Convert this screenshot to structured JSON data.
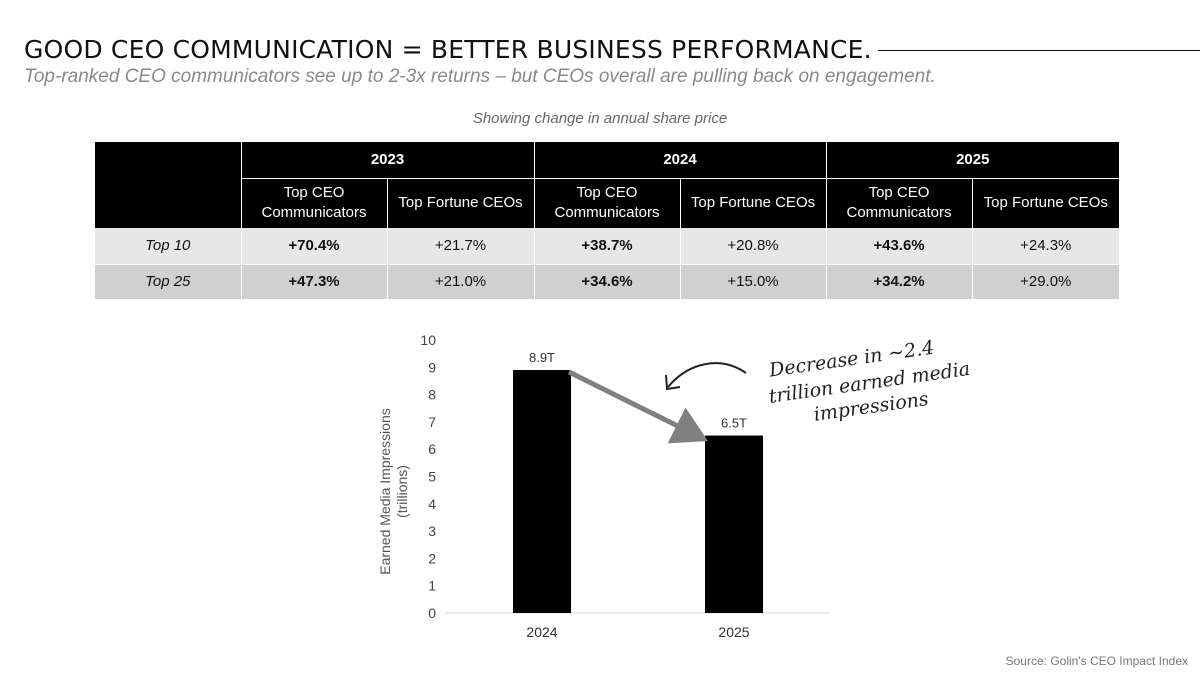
{
  "header": {
    "title": "GOOD CEO COMMUNICATION = BETTER BUSINESS PERFORMANCE.",
    "subtitle": "Top-ranked CEO communicators see up to 2-3x returns – but CEOs overall are pulling back on engagement.",
    "caption": "Showing change in annual share price"
  },
  "table": {
    "years": [
      "2023",
      "2024",
      "2025"
    ],
    "columns": [
      "Top CEO Communicators",
      "Top Fortune CEOs",
      "Top CEO Communicators",
      "Top Fortune CEOs",
      "Top CEO Communicators",
      "Top Fortune CEOs"
    ],
    "rows": [
      {
        "label": "Top 10",
        "values": [
          "+70.4%",
          "+21.7%",
          "+38.7%",
          "+20.8%",
          "+43.6%",
          "+24.3%"
        ]
      },
      {
        "label": "Top 25",
        "values": [
          "+47.3%",
          "+21.0%",
          "+34.6%",
          "+15.0%",
          "+34.2%",
          "+29.0%"
        ]
      }
    ]
  },
  "chart_data": {
    "type": "bar",
    "categories": [
      "2024",
      "2025"
    ],
    "values": [
      8.9,
      6.5
    ],
    "data_labels": [
      "8.9T",
      "6.5T"
    ],
    "ylabel": "Earned Media Impressions (trillions)",
    "ylim": [
      0,
      10
    ],
    "yticks": [
      0,
      1,
      2,
      3,
      4,
      5,
      6,
      7,
      8,
      9,
      10
    ],
    "grid": false,
    "bar_color": "#000000",
    "trend_line_color": "#808080",
    "annotation": {
      "lines": [
        "Decrease in ~2.4",
        "trillion earned media",
        "impressions"
      ]
    }
  },
  "source": "Source: Golin's CEO Impact Index",
  "colors": {
    "header_bg": "#000000",
    "row_light": "#e7e7e7",
    "row_dark": "#d0d0d0",
    "subtitle": "#8a8a8a"
  }
}
